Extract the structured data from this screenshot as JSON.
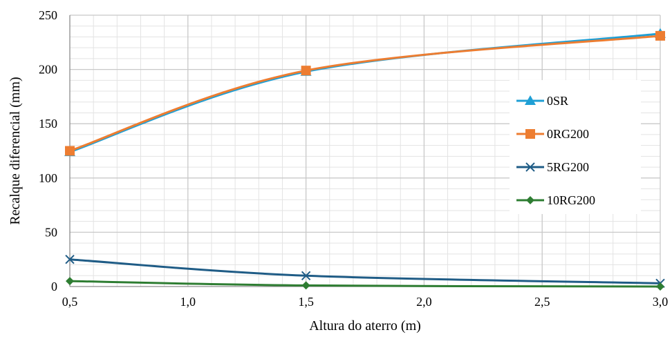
{
  "chart_data": {
    "type": "line",
    "title": "",
    "xlabel": "Altura do aterro (m)",
    "ylabel": "Recalque diferencial (mm)",
    "xlim": [
      0.5,
      3.0
    ],
    "ylim": [
      0,
      250
    ],
    "x_ticks": [
      "0,5",
      "1,0",
      "1,5",
      "2,0",
      "2,5",
      "3,0"
    ],
    "y_ticks": [
      "0",
      "50",
      "100",
      "150",
      "200",
      "250"
    ],
    "grid": true,
    "legend_position": "right",
    "series": [
      {
        "name": "0SR",
        "color": "#1f9fd5",
        "marker": "triangle",
        "x": [
          0.5,
          1.5,
          3.0
        ],
        "y": [
          124,
          198,
          233
        ]
      },
      {
        "name": "0RG200",
        "color": "#ed7d31",
        "marker": "square",
        "x": [
          0.5,
          1.5,
          3.0
        ],
        "y": [
          125,
          199,
          231
        ]
      },
      {
        "name": "5RG200",
        "color": "#1f5c86",
        "marker": "x",
        "x": [
          0.5,
          1.5,
          3.0
        ],
        "y": [
          25,
          10,
          3
        ]
      },
      {
        "name": "10RG200",
        "color": "#2e7d32",
        "marker": "diamond",
        "x": [
          0.5,
          1.5,
          3.0
        ],
        "y": [
          5,
          1,
          0
        ]
      }
    ]
  }
}
